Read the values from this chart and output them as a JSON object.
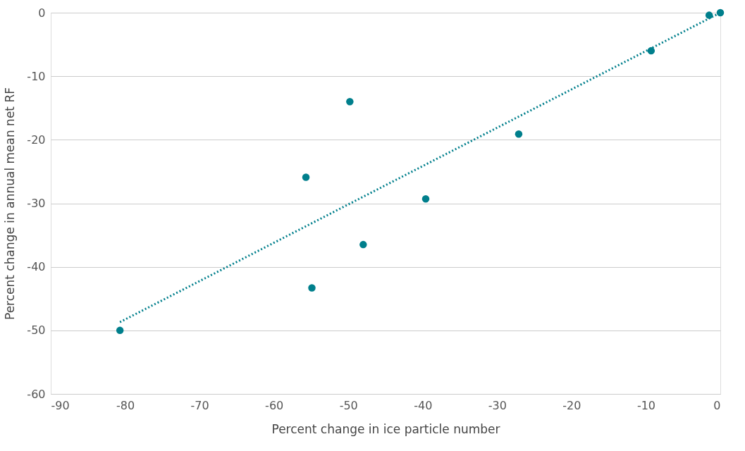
{
  "chart_data": {
    "type": "scatter",
    "xlabel": "Percent change in ice particle number",
    "ylabel": "Percent change in annual mean net RF",
    "xlim": [
      -90,
      0
    ],
    "ylim": [
      -60,
      0
    ],
    "xticks": [
      -90,
      -80,
      -70,
      -60,
      -50,
      -40,
      -30,
      -20,
      -10,
      0
    ],
    "yticks": [
      -60,
      -50,
      -40,
      -30,
      -20,
      -10,
      0
    ],
    "grid": "y",
    "series": [
      {
        "marker": "circle",
        "color": "#007f8c",
        "x": [
          -80.7,
          -49.8,
          -55.7,
          -54.9,
          -48.0,
          -39.6,
          -27.1,
          -9.3,
          -1.5,
          0
        ],
        "values": [
          -50,
          -14.0,
          -25.9,
          -43.3,
          -36.5,
          -29.3,
          -19.1,
          -6.0,
          -0.4,
          0
        ]
      },
      {
        "type": "line",
        "color": "#007f8c",
        "line_style": "dotted",
        "x": [
          -80.7,
          0
        ],
        "values": [
          -48.7,
          0
        ]
      }
    ]
  }
}
